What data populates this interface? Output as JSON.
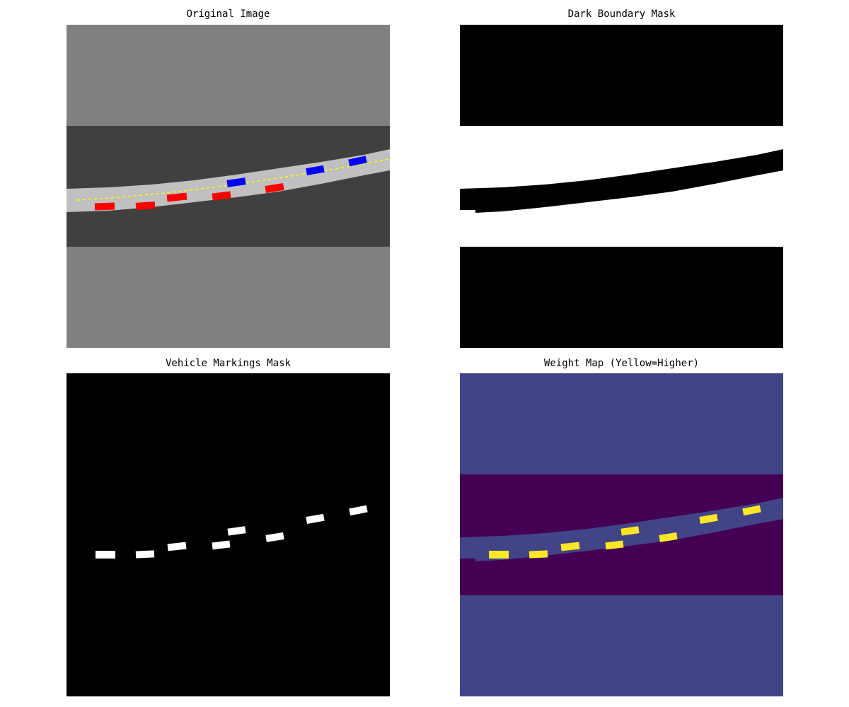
{
  "panels": [
    {
      "title": "Original Image"
    },
    {
      "title": "Dark Boundary Mask"
    },
    {
      "title": "Vehicle Markings Mask"
    },
    {
      "title": "Weight Map (Yellow=Higher)"
    }
  ],
  "colors": {
    "light_gray": "#808080",
    "dark_gray": "#404040",
    "road": "#c0c0c0",
    "center_line": "#ffff00",
    "vehicle_red": "#ff0000",
    "vehicle_blue": "#0000ff",
    "mask_black": "#000000",
    "mask_white": "#ffffff",
    "weight_low": "#440154",
    "weight_mid": "#414487",
    "weight_high": "#fde725"
  }
}
